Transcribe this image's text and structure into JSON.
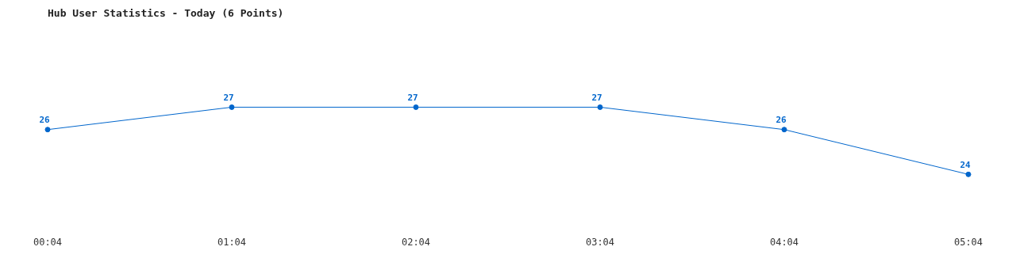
{
  "chart_data": {
    "type": "line",
    "title": "Hub User Statistics - Today (6 Points)",
    "categories": [
      "00:04",
      "01:04",
      "02:04",
      "03:04",
      "04:04",
      "05:04"
    ],
    "series": [
      {
        "color": "#0066cc",
        "values": [
          26,
          27,
          27,
          27,
          26,
          24
        ]
      }
    ],
    "data_labels": true,
    "marker": "circle",
    "line_style": "solid",
    "grid": false,
    "legend": false,
    "tick_labels": "x"
  }
}
